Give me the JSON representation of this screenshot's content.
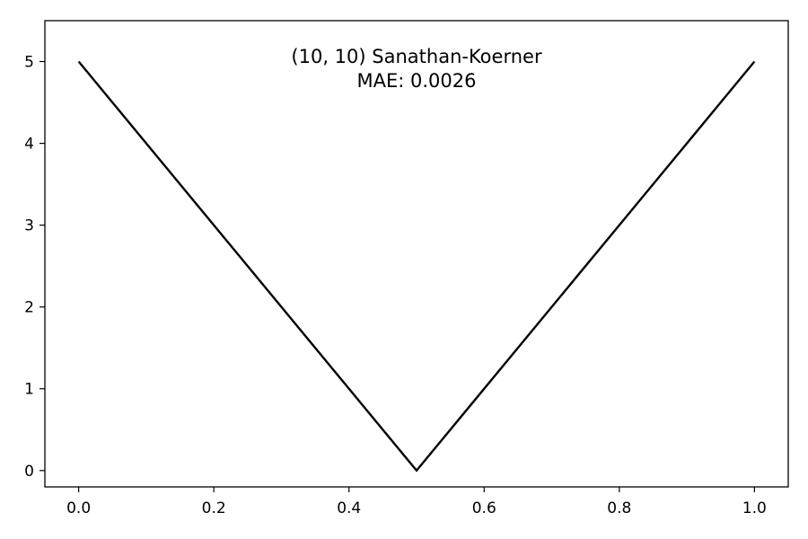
{
  "chart_data": {
    "type": "line",
    "title_lines": [
      "(10, 10) Sanathan-Koerner",
      "MAE: 0.0026"
    ],
    "xlabel": "",
    "ylabel": "",
    "xlim": [
      -0.05,
      1.05
    ],
    "ylim": [
      -0.2,
      5.5
    ],
    "xticks": [
      0.0,
      0.2,
      0.4,
      0.6,
      0.8,
      1.0
    ],
    "xtick_labels": [
      "0.0",
      "0.2",
      "0.4",
      "0.6",
      "0.8",
      "1.0"
    ],
    "yticks": [
      0,
      1,
      2,
      3,
      4,
      5
    ],
    "ytick_labels": [
      "0",
      "1",
      "2",
      "3",
      "4",
      "5"
    ],
    "grid": false,
    "legend": "none",
    "series": [
      {
        "color": "#000000",
        "x": [
          0.0,
          0.5,
          1.0
        ],
        "y": [
          5.0,
          0.0,
          5.0
        ]
      }
    ]
  }
}
